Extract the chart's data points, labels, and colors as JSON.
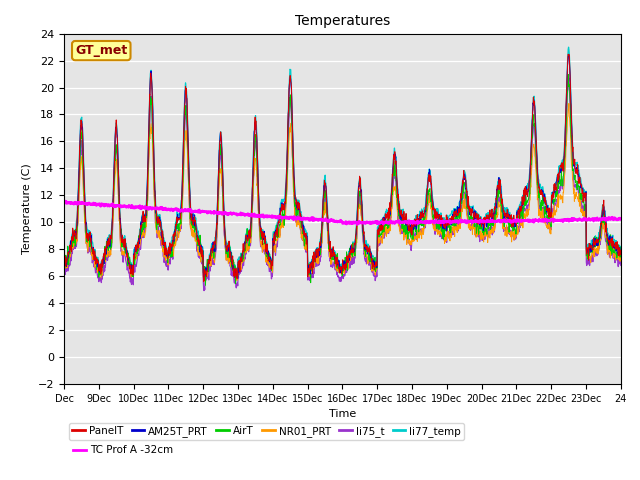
{
  "title": "Temperatures",
  "xlabel": "Time",
  "ylabel": "Temperature (C)",
  "ylim": [
    -2,
    24
  ],
  "xlim": [
    0,
    16
  ],
  "xtick_labels": [
    "Dec",
    "9Dec",
    "10Dec",
    "11Dec",
    "12Dec",
    "13Dec",
    "14Dec",
    "15Dec",
    "16Dec",
    "17Dec",
    "18Dec",
    "19Dec",
    "20Dec",
    "21Dec",
    "22Dec",
    "23Dec",
    "24"
  ],
  "background_color": "#e5e5e5",
  "series_colors": {
    "PanelT": "#dd0000",
    "AM25T_PRT": "#0000cc",
    "AirT": "#00cc00",
    "NR01_PRT": "#ff9900",
    "li75_t": "#9933cc",
    "li77_temp": "#00cccc",
    "TC_Prof_A": "#ff00ff"
  },
  "legend_label": "GT_met",
  "legend_bg": "#ffff99",
  "legend_border": "#cc8800"
}
